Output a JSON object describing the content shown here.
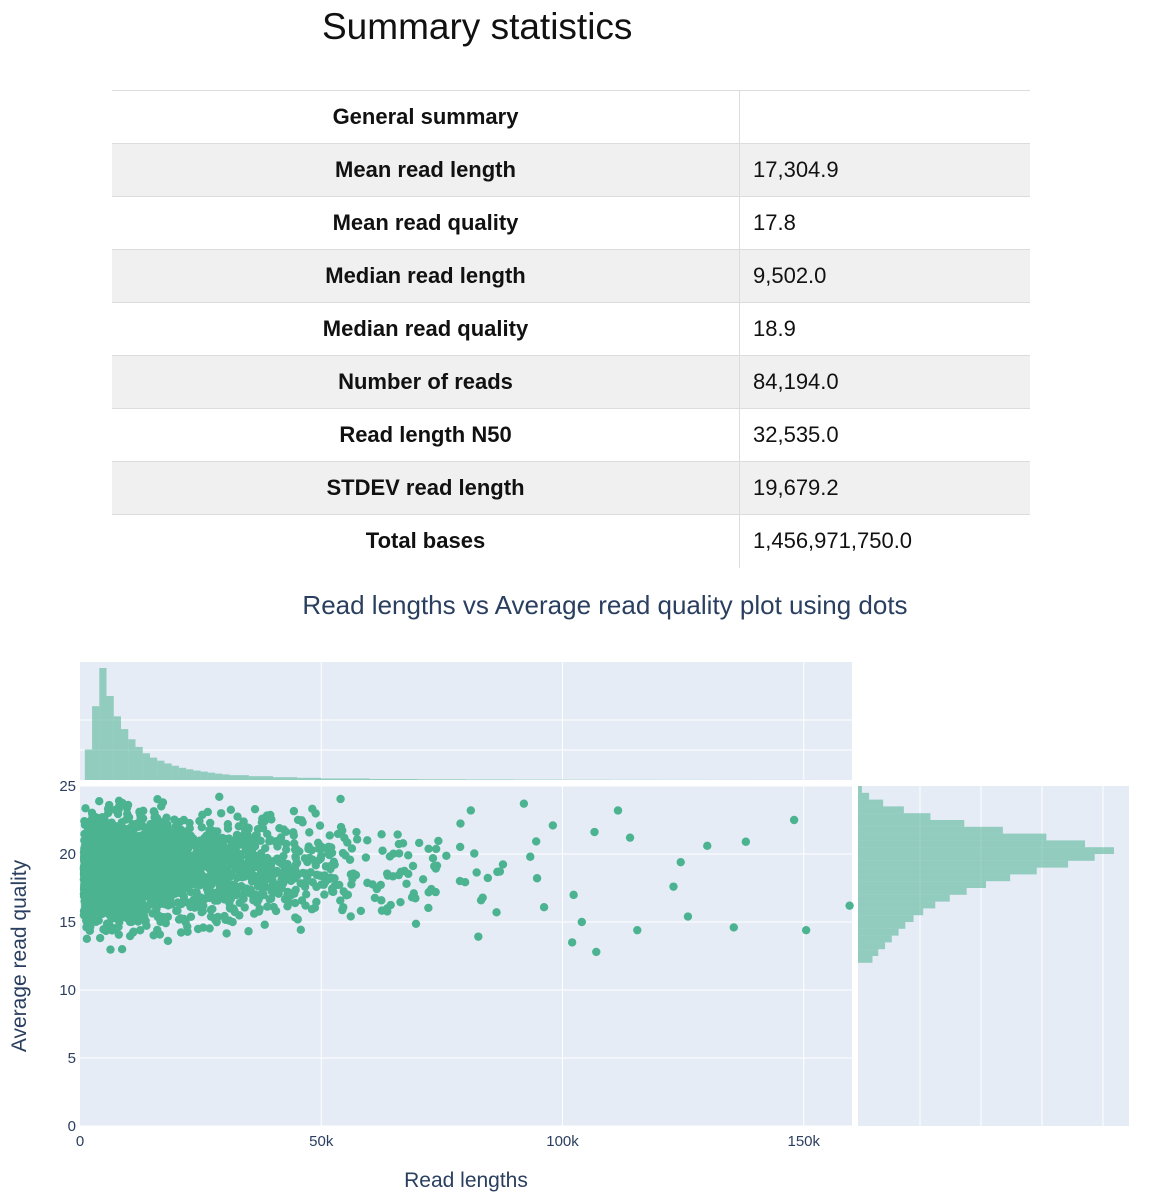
{
  "page_title": "Summary statistics",
  "summary_table": {
    "header": "General summary",
    "rows": [
      {
        "label": "Mean read length",
        "value": "17,304.9"
      },
      {
        "label": "Mean read quality",
        "value": "17.8"
      },
      {
        "label": "Median read length",
        "value": "9,502.0"
      },
      {
        "label": "Median read quality",
        "value": "18.9"
      },
      {
        "label": "Number of reads",
        "value": "84,194.0"
      },
      {
        "label": "Read length N50",
        "value": "32,535.0"
      },
      {
        "label": "STDEV read length",
        "value": "19,679.2"
      },
      {
        "label": "Total bases",
        "value": "1,456,971,750.0"
      }
    ]
  },
  "chart_data": {
    "type": "scatter",
    "title": "Read lengths vs Average read quality plot using dots",
    "xlabel": "Read lengths",
    "ylabel": "Average read quality",
    "xlim": [
      0,
      160000
    ],
    "ylim": [
      0,
      25
    ],
    "x_ticks": [
      0,
      50000,
      100000,
      150000
    ],
    "x_tick_labels": [
      "0",
      "50k",
      "100k",
      "150k"
    ],
    "y_ticks": [
      0,
      5,
      10,
      15,
      20,
      25
    ],
    "y_tick_labels": [
      "0",
      "5",
      "10",
      "15",
      "20",
      "25"
    ],
    "color": "#4cb391",
    "marginal_color": "#4cb391",
    "summary": {
      "n_reads": 84194,
      "mean_length": 17304.9,
      "median_length": 9502.0,
      "mean_quality": 17.8,
      "median_quality": 18.9
    },
    "representative_points": [
      {
        "x": 148000,
        "y": 22.5
      },
      {
        "x": 150500,
        "y": 14.4
      },
      {
        "x": 159500,
        "y": 16.2
      },
      {
        "x": 135500,
        "y": 14.6
      },
      {
        "x": 138000,
        "y": 20.9
      },
      {
        "x": 130000,
        "y": 20.6
      },
      {
        "x": 124500,
        "y": 19.4
      },
      {
        "x": 123000,
        "y": 17.6
      },
      {
        "x": 126000,
        "y": 15.4
      },
      {
        "x": 115500,
        "y": 14.4
      },
      {
        "x": 114000,
        "y": 21.2
      },
      {
        "x": 111500,
        "y": 23.2
      },
      {
        "x": 107000,
        "y": 12.8
      },
      {
        "x": 102000,
        "y": 13.5
      },
      {
        "x": 104000,
        "y": 15.0
      },
      {
        "x": 98000,
        "y": 22.1
      },
      {
        "x": 92000,
        "y": 23.7
      },
      {
        "x": 81000,
        "y": 23.2
      }
    ],
    "length_histogram": {
      "bin_width": 1500,
      "bin_starts": [
        1000,
        2500,
        4000,
        5500,
        7000,
        8500,
        10000,
        11500,
        13000,
        14500,
        16000,
        17500,
        19000,
        20500,
        22000,
        23500,
        25000,
        26500,
        28000,
        29500,
        31000,
        35000,
        40000,
        45000,
        50000,
        60000,
        70000,
        80000,
        90000,
        100000,
        110000,
        120000,
        130000,
        140000,
        150000
      ],
      "counts": [
        1200,
        2900,
        4400,
        3300,
        2500,
        2000,
        1600,
        1300,
        1050,
        880,
        760,
        650,
        560,
        480,
        420,
        370,
        330,
        290,
        250,
        220,
        190,
        150,
        110,
        85,
        60,
        40,
        28,
        20,
        14,
        10,
        7,
        5,
        3,
        2,
        1
      ]
    },
    "quality_histogram": {
      "bin_width": 0.5,
      "bin_starts": [
        12,
        12.5,
        13,
        13.5,
        14,
        14.5,
        15,
        15.5,
        16,
        16.5,
        17,
        17.5,
        18,
        18.5,
        19,
        19.5,
        20,
        20.5,
        21,
        21.5,
        22,
        22.5,
        23,
        23.5,
        24,
        24.5
      ],
      "counts": [
        300,
        420,
        560,
        700,
        840,
        980,
        1150,
        1350,
        1600,
        1900,
        2250,
        2650,
        3150,
        3700,
        4350,
        4900,
        5300,
        4700,
        3900,
        3000,
        2200,
        1500,
        950,
        520,
        230,
        80
      ]
    }
  }
}
